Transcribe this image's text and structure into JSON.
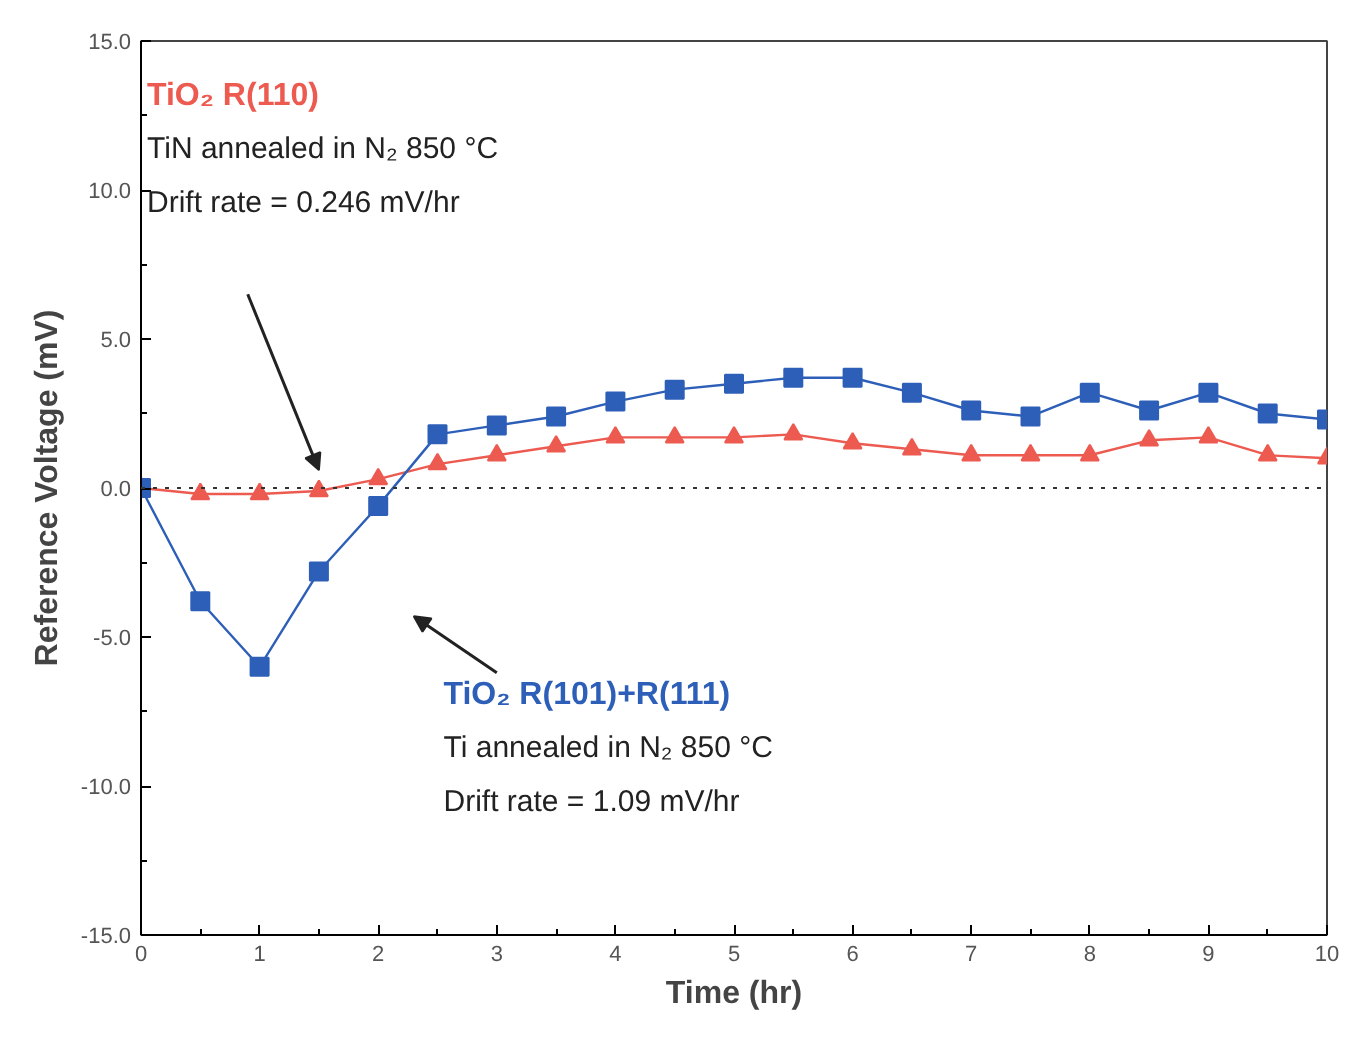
{
  "chart_data": {
    "type": "line",
    "xlabel": "Time (hr)",
    "ylabel": "Reference Voltage (mV)",
    "x": [
      0,
      0.5,
      1,
      1.5,
      2,
      2.5,
      3,
      3.5,
      4,
      4.5,
      5,
      5.5,
      6,
      6.5,
      7,
      7.5,
      8,
      8.5,
      9,
      9.5,
      10
    ],
    "series": [
      {
        "name": "TiO₂ R(110)",
        "color": "#ec5a50",
        "marker": "triangle",
        "values": [
          0,
          -0.2,
          -0.2,
          -0.1,
          0.3,
          0.8,
          1.1,
          1.4,
          1.7,
          1.7,
          1.7,
          1.8,
          1.5,
          1.3,
          1.1,
          1.1,
          1.1,
          1.6,
          1.7,
          1.1,
          1.0
        ]
      },
      {
        "name": "TiO₂ R(101)+R(111)",
        "color": "#2d5fb8",
        "marker": "square",
        "values": [
          0,
          -3.8,
          -6.0,
          -2.8,
          -0.6,
          1.8,
          2.1,
          2.4,
          2.9,
          3.3,
          3.5,
          3.7,
          3.7,
          3.2,
          2.6,
          2.4,
          3.2,
          2.6,
          3.2,
          2.5,
          2.3
        ]
      }
    ],
    "annotations": [
      "TiN annealed in N₂ 850 °C",
      "Drift rate = 0.246 mV/hr",
      "Ti annealed in N₂ 850 °C",
      "Drift rate = 1.09 mV/hr"
    ],
    "ref_lines": [
      {
        "axis": "y",
        "value": 0,
        "line_style": "dotted",
        "color": "#333333"
      }
    ],
    "xlim": [
      0,
      10
    ],
    "ylim": [
      -15,
      15
    ],
    "xticks": [
      0,
      1,
      2,
      3,
      4,
      5,
      6,
      7,
      8,
      9,
      10
    ],
    "yticks": [
      {
        "value": -15,
        "label": "-15.0"
      },
      {
        "value": -10,
        "label": "-10.0"
      },
      {
        "value": -5,
        "label": "-5.0"
      },
      {
        "value": 0,
        "label": "0.0"
      },
      {
        "value": 5,
        "label": "5.0"
      },
      {
        "value": 10,
        "label": "10.0"
      },
      {
        "value": 15,
        "label": "15.0"
      }
    ],
    "grid": false
  }
}
